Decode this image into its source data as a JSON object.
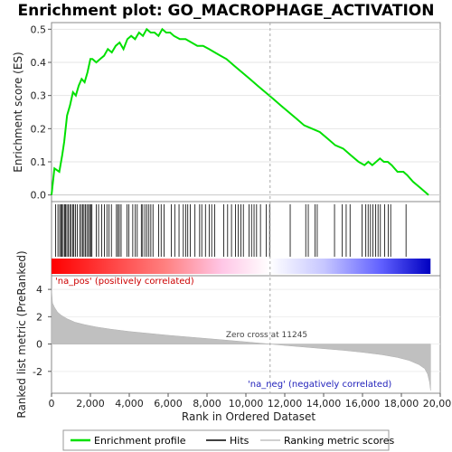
{
  "chart_data": {
    "type": "line",
    "title": "Enrichment plot: GO_MACROPHAGE_ACTIVATION",
    "xlabel": "Rank in Ordered Dataset",
    "es_panel": {
      "ylabel": "Enrichment score (ES)",
      "ylim": [
        -0.02,
        0.52
      ],
      "yticks": [
        "0.0",
        "0.1",
        "0.2",
        "0.3",
        "0.4",
        "0.5"
      ],
      "ytick_values": [
        0.0,
        0.1,
        0.2,
        0.3,
        0.4,
        0.5
      ],
      "series": [
        {
          "name": "Enrichment profile",
          "color": "#00e000",
          "x": [
            0,
            150,
            400,
            550,
            650,
            800,
            950,
            1100,
            1250,
            1400,
            1550,
            1700,
            1850,
            2000,
            2100,
            2300,
            2500,
            2700,
            2900,
            3100,
            3300,
            3500,
            3700,
            3900,
            4100,
            4300,
            4500,
            4700,
            4900,
            5100,
            5300,
            5500,
            5700,
            5900,
            6100,
            6300,
            6600,
            6900,
            7200,
            7500,
            7800,
            8100,
            8400,
            8700,
            9000,
            9400,
            9800,
            10200,
            10600,
            11000,
            11400,
            11800,
            12200,
            12600,
            13000,
            13400,
            13800,
            14200,
            14600,
            15000,
            15400,
            15800,
            16100,
            16300,
            16500,
            16700,
            16900,
            17100,
            17300,
            17500,
            17800,
            18100,
            18300,
            18600,
            19000,
            19400
          ],
          "y": [
            0.0,
            0.08,
            0.07,
            0.12,
            0.16,
            0.24,
            0.27,
            0.31,
            0.3,
            0.33,
            0.35,
            0.34,
            0.37,
            0.41,
            0.41,
            0.4,
            0.41,
            0.42,
            0.44,
            0.43,
            0.45,
            0.46,
            0.44,
            0.47,
            0.48,
            0.47,
            0.49,
            0.48,
            0.5,
            0.49,
            0.49,
            0.48,
            0.5,
            0.49,
            0.49,
            0.48,
            0.47,
            0.47,
            0.46,
            0.45,
            0.45,
            0.44,
            0.43,
            0.42,
            0.41,
            0.39,
            0.37,
            0.35,
            0.33,
            0.31,
            0.29,
            0.27,
            0.25,
            0.23,
            0.21,
            0.2,
            0.19,
            0.17,
            0.15,
            0.14,
            0.12,
            0.1,
            0.09,
            0.1,
            0.09,
            0.1,
            0.11,
            0.1,
            0.1,
            0.09,
            0.07,
            0.07,
            0.06,
            0.04,
            0.02,
            0.0
          ]
        }
      ]
    },
    "hits": [
      210,
      330,
      420,
      480,
      540,
      600,
      670,
      720,
      790,
      860,
      940,
      1010,
      1100,
      1150,
      1230,
      1330,
      1450,
      1530,
      1600,
      1670,
      1740,
      1820,
      1900,
      1960,
      2020,
      2080,
      2300,
      2420,
      2580,
      2720,
      2850,
      2960,
      3080,
      3340,
      3410,
      3490,
      3580,
      3880,
      3980,
      4180,
      4310,
      4410,
      4620,
      4690,
      4800,
      4900,
      5010,
      5110,
      5220,
      5510,
      5640,
      5790,
      6160,
      6340,
      6560,
      6780,
      6900,
      7010,
      7140,
      7380,
      7620,
      7730,
      7920,
      8110,
      8240,
      8390,
      8860,
      9060,
      9260,
      9470,
      9610,
      9740,
      9870,
      10160,
      10290,
      10420,
      10550,
      10750,
      11050,
      11220,
      12280,
      13080,
      13210,
      13560,
      13670,
      14560,
      14960,
      15160,
      15360,
      15980,
      16170,
      16290,
      16410,
      16540,
      16680,
      16800,
      16920,
      17140,
      17320,
      17450,
      18240
    ],
    "hits_label": "Hits",
    "metric_panel": {
      "ylabel": "Ranked list metric (PreRanked)",
      "ylim": [
        -3.6,
        5.0
      ],
      "yticks": [
        "4",
        "2",
        "0",
        "-2"
      ],
      "ytick_values": [
        4,
        2,
        0,
        -2
      ],
      "series": [
        {
          "name": "Ranking metric scores",
          "color": "#c0c0c0",
          "x": [
            0,
            50,
            150,
            300,
            500,
            800,
            1200,
            1700,
            2300,
            3000,
            4000,
            5000,
            6000,
            7000,
            8000,
            9000,
            10000,
            11245,
            12000,
            13000,
            14000,
            15000,
            16000,
            17000,
            17800,
            18400,
            18900,
            19200,
            19350,
            19450,
            19500
          ],
          "y": [
            4.0,
            3.0,
            2.7,
            2.35,
            2.1,
            1.85,
            1.6,
            1.42,
            1.25,
            1.1,
            0.92,
            0.78,
            0.64,
            0.52,
            0.4,
            0.28,
            0.16,
            0.0,
            -0.1,
            -0.22,
            -0.34,
            -0.46,
            -0.6,
            -0.78,
            -0.98,
            -1.2,
            -1.5,
            -1.8,
            -2.2,
            -2.8,
            -3.4
          ]
        }
      ],
      "zero_cross_label": "Zero cross at 11245",
      "zero_cross": 11245,
      "pos_label": "'na_pos' (positively correlated)",
      "neg_label": "'na_neg' (negatively correlated)"
    },
    "xlim": [
      0,
      20000
    ],
    "xticks": [
      "0",
      "2,000",
      "4,000",
      "6,000",
      "8,000",
      "10,000",
      "12,000",
      "14,000",
      "16,000",
      "18,000",
      "20,000"
    ],
    "xtick_values": [
      0,
      2000,
      4000,
      6000,
      8000,
      10000,
      12000,
      14000,
      16000,
      18000,
      20000
    ],
    "dataset_size": 19500,
    "legend": {
      "placement": "bottom",
      "entries": [
        "Enrichment profile",
        "Hits",
        "Ranking metric scores"
      ]
    },
    "colors": {
      "profile": "#00e000",
      "hits": "#000000",
      "metric": "#c0c0c0",
      "pos": "#ff0000",
      "neg": "#0000ff"
    }
  }
}
